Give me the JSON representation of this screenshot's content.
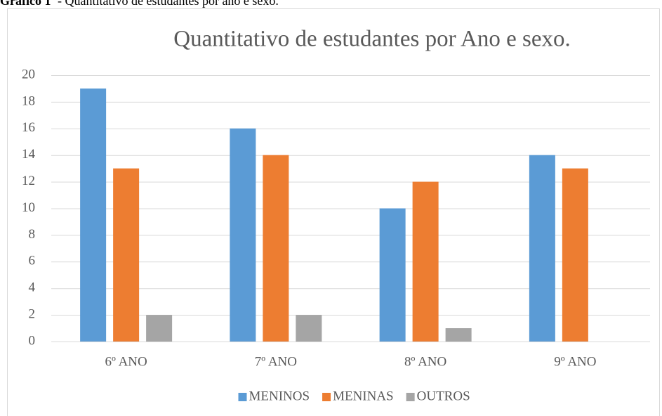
{
  "caption_label": "Gráfico 1",
  "caption_text": "- Quantitativo de estudantes por ano e sexo.",
  "chart_data": {
    "type": "bar",
    "title": "Quantitativo de estudantes por Ano e sexo.",
    "categories": [
      "6º ANO",
      "7º ANO",
      "8º ANO",
      "9º ANO"
    ],
    "series": [
      {
        "name": "MENINOS",
        "color": "#5b9bd5",
        "values": [
          19,
          16,
          10,
          14
        ]
      },
      {
        "name": "MENINAS",
        "color": "#ed7d31",
        "values": [
          13,
          14,
          12,
          13
        ]
      },
      {
        "name": "OUTROS",
        "color": "#a5a5a5",
        "values": [
          2,
          2,
          1,
          0
        ]
      }
    ],
    "ylim": [
      0,
      20
    ],
    "yticks": [
      0,
      2,
      4,
      6,
      8,
      10,
      12,
      14,
      16,
      18,
      20
    ],
    "grid": true,
    "legend": "bottom"
  }
}
